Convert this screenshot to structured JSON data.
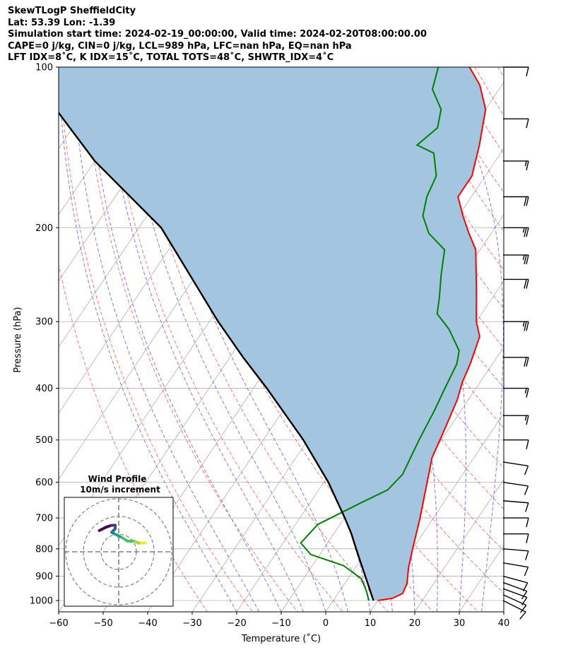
{
  "header": {
    "line1": "SkewTLogP SheffieldCity",
    "line2": "Lat: 53.39   Lon: -1.39",
    "line3": "Simulation start time: 2024-02-19_00:00:00, Valid time: 2024-02-20T08:00:00.00",
    "line4": "CAPE=0 j/kg, CIN=0 j/kg, LCL=989 hPa, LFC=nan hPa, EQ=nan hPa",
    "line5": "LFT IDX=8˚C, K IDX=15˚C, TOTAL TOTS=48˚C, SHWTR_IDX=4˚C"
  },
  "chart_data": {
    "type": "line",
    "xlabel": "Temperature (˚C)",
    "ylabel": "Pressure (hPa)",
    "xlim": [
      -60,
      40
    ],
    "ylim": [
      1050,
      100
    ],
    "yscale": "log",
    "skew": true,
    "grid": true,
    "x_ticks": [
      "−60",
      "−50",
      "−40",
      "−30",
      "−20",
      "−10",
      "0",
      "10",
      "20",
      "30",
      "40"
    ],
    "y_ticks": [
      "100",
      "200",
      "300",
      "400",
      "500",
      "600",
      "700",
      "800",
      "900",
      "1000"
    ],
    "series": [
      {
        "color": "#ff0000",
        "points": [
          [
            10,
            1000
          ],
          [
            13,
            990
          ],
          [
            14.5,
            970
          ],
          [
            14,
            930
          ],
          [
            12,
            870
          ],
          [
            10,
            800
          ],
          [
            7,
            700
          ],
          [
            4,
            620
          ],
          [
            0.6,
            540
          ],
          [
            -0.8,
            480
          ],
          [
            -2.5,
            420
          ],
          [
            -4,
            390
          ],
          [
            -5,
            360
          ],
          [
            -7,
            320
          ],
          [
            -10,
            300
          ],
          [
            -15,
            260
          ],
          [
            -21,
            220
          ],
          [
            -25,
            205
          ],
          [
            -29,
            190
          ],
          [
            -33,
            175
          ],
          [
            -33,
            160
          ],
          [
            -36,
            140
          ],
          [
            -40,
            120
          ],
          [
            -45,
            108
          ],
          [
            -50,
            100
          ]
        ]
      },
      {
        "color": "#008000",
        "points": [
          [
            8,
            1000
          ],
          [
            6,
            960
          ],
          [
            3,
            910
          ],
          [
            -3,
            860
          ],
          [
            -12,
            820
          ],
          [
            -16,
            780
          ],
          [
            -15,
            720
          ],
          [
            -9,
            660
          ],
          [
            -4.5,
            620
          ],
          [
            -3.5,
            580
          ],
          [
            -5,
            500
          ],
          [
            -6,
            440
          ],
          [
            -7,
            400
          ],
          [
            -8,
            360
          ],
          [
            -9.5,
            340
          ],
          [
            -15,
            310
          ],
          [
            -20,
            290
          ],
          [
            -22,
            270
          ],
          [
            -25,
            245
          ],
          [
            -28,
            220
          ],
          [
            -34,
            205
          ],
          [
            -38,
            190
          ],
          [
            -40,
            175
          ],
          [
            -41,
            160
          ],
          [
            -45,
            145
          ],
          [
            -50,
            140
          ],
          [
            -48,
            130
          ],
          [
            -50,
            120
          ],
          [
            -55,
            110
          ],
          [
            -57,
            100
          ]
        ]
      },
      {
        "color": "#000000",
        "points": [
          [
            9,
            1000
          ],
          [
            3.5,
            900
          ],
          [
            -2.7,
            800
          ],
          [
            -6,
            750
          ],
          [
            -9.9,
            700
          ],
          [
            -19,
            600
          ],
          [
            -31,
            500
          ],
          [
            -47,
            400
          ],
          [
            -57,
            350
          ],
          [
            -68,
            300
          ],
          [
            -95,
            200
          ],
          [
            -120,
            150
          ],
          [
            -150,
            100
          ]
        ]
      }
    ],
    "shaded_area": {
      "color": "#a3c5df",
      "between": [
        "red",
        "black"
      ]
    },
    "wind_barbs": [
      {
        "p": 1000,
        "u": -10,
        "v": 5
      },
      {
        "p": 975,
        "u": -11,
        "v": 5
      },
      {
        "p": 950,
        "u": -11,
        "v": 4
      },
      {
        "p": 925,
        "u": -11,
        "v": 4
      },
      {
        "p": 900,
        "u": -11,
        "v": 3
      },
      {
        "p": 850,
        "u": -12,
        "v": 2
      },
      {
        "p": 800,
        "u": -12,
        "v": 1
      },
      {
        "p": 750,
        "u": -12,
        "v": 0
      },
      {
        "p": 700,
        "u": -12,
        "v": 0
      },
      {
        "p": 650,
        "u": -12,
        "v": 1
      },
      {
        "p": 600,
        "u": -13,
        "v": 2
      },
      {
        "p": 550,
        "u": -13,
        "v": 2
      },
      {
        "p": 500,
        "u": -13,
        "v": 0
      },
      {
        "p": 450,
        "u": -15,
        "v": 0
      },
      {
        "p": 400,
        "u": -18,
        "v": 0
      },
      {
        "p": 350,
        "u": -21,
        "v": 0
      },
      {
        "p": 300,
        "u": -25,
        "v": 0
      },
      {
        "p": 250,
        "u": -23,
        "v": 0
      },
      {
        "p": 225,
        "u": -25,
        "v": 0
      },
      {
        "p": 200,
        "u": -25,
        "v": 0
      },
      {
        "p": 175,
        "u": -20,
        "v": 0
      },
      {
        "p": 150,
        "u": -15,
        "v": 0
      },
      {
        "p": 125,
        "u": -10,
        "v": 0
      },
      {
        "p": 100,
        "u": -10,
        "v": 0
      }
    ],
    "hodograph": {
      "title": "Wind Profile",
      "subtitle": "10m/s increment",
      "ring_increment": 10,
      "points": [
        [
          -11,
          12
        ],
        [
          -7,
          14
        ],
        [
          -4,
          15
        ],
        [
          -2,
          15
        ],
        [
          -2,
          14
        ],
        [
          -2,
          13
        ],
        [
          -4,
          11
        ],
        [
          -2,
          10
        ],
        [
          0,
          9
        ],
        [
          2,
          8
        ],
        [
          5,
          6
        ],
        [
          9,
          6
        ],
        [
          11,
          5
        ],
        [
          13,
          5
        ],
        [
          15,
          5
        ]
      ]
    }
  }
}
